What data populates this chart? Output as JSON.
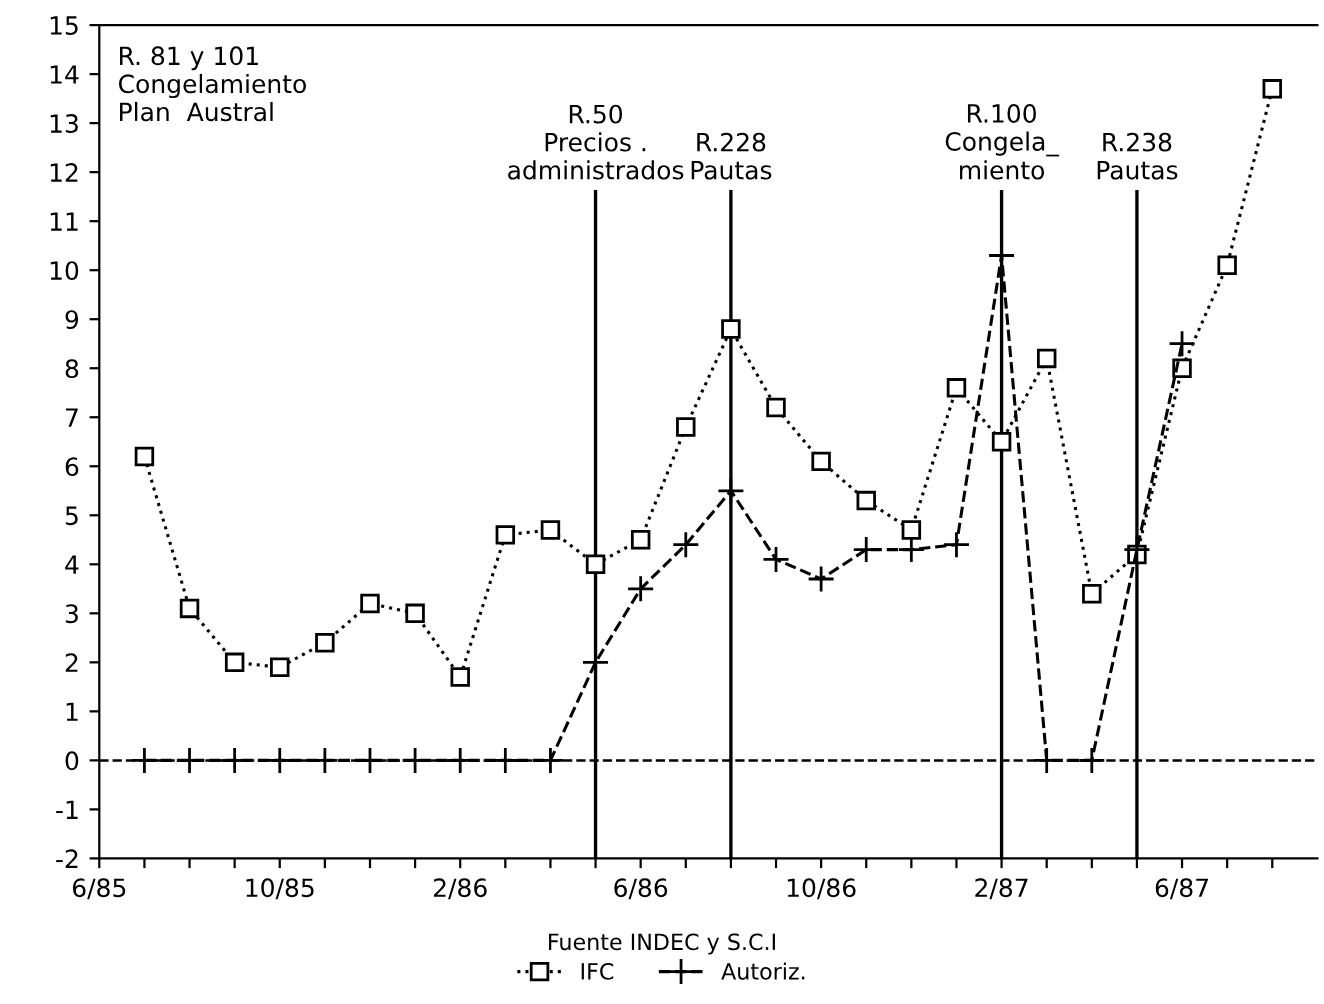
{
  "chart_data": {
    "type": "line",
    "x": [
      "1985-07",
      "1985-08",
      "1985-09",
      "1985-10",
      "1985-11",
      "1985-12",
      "1986-01",
      "1986-02",
      "1986-03",
      "1986-04",
      "1986-05",
      "1986-06",
      "1986-07",
      "1986-08",
      "1986-09",
      "1986-10",
      "1986-11",
      "1986-12",
      "1987-01",
      "1987-02",
      "1987-03",
      "1987-04",
      "1987-05",
      "1987-06",
      "1987-07",
      "1987-08"
    ],
    "series": [
      {
        "name": "IFC",
        "color": "#000000",
        "marker": "square",
        "line_style": "dotted",
        "values": [
          6.2,
          3.1,
          2.0,
          1.9,
          2.4,
          3.2,
          3.0,
          1.7,
          4.6,
          4.7,
          4.0,
          4.5,
          6.8,
          8.8,
          7.2,
          6.1,
          5.3,
          4.7,
          7.6,
          6.5,
          8.2,
          3.4,
          4.2,
          8.0,
          10.1,
          13.7
        ]
      },
      {
        "name": "Autoriz.",
        "color": "#000000",
        "marker": "cross",
        "line_style": "dashed",
        "values": [
          0,
          0,
          0,
          0,
          0,
          0,
          0,
          0,
          0,
          0,
          2.0,
          3.5,
          4.4,
          5.5,
          4.1,
          3.7,
          4.3,
          4.3,
          4.4,
          10.3,
          0,
          0,
          4.3,
          8.5,
          null,
          null
        ]
      }
    ],
    "xlim": [
      "1985-06",
      "1987-09"
    ],
    "xticks": [
      {
        "value": "1985-06",
        "label": "6/85"
      },
      {
        "value": "1985-07",
        "label": null
      },
      {
        "value": "1985-08",
        "label": null
      },
      {
        "value": "1985-09",
        "label": null
      },
      {
        "value": "1985-10",
        "label": "10/85"
      },
      {
        "value": "1985-11",
        "label": null
      },
      {
        "value": "1985-12",
        "label": null
      },
      {
        "value": "1986-01",
        "label": null
      },
      {
        "value": "1986-02",
        "label": "2/86"
      },
      {
        "value": "1986-03",
        "label": null
      },
      {
        "value": "1986-04",
        "label": null
      },
      {
        "value": "1986-05",
        "label": null
      },
      {
        "value": "1986-06",
        "label": "6/86"
      },
      {
        "value": "1986-07",
        "label": null
      },
      {
        "value": "1986-08",
        "label": null
      },
      {
        "value": "1986-09",
        "label": null
      },
      {
        "value": "1986-10",
        "label": "10/86"
      },
      {
        "value": "1986-11",
        "label": null
      },
      {
        "value": "1986-12",
        "label": null
      },
      {
        "value": "1987-01",
        "label": null
      },
      {
        "value": "1987-02",
        "label": "2/87"
      },
      {
        "value": "1987-03",
        "label": null
      },
      {
        "value": "1987-04",
        "label": null
      },
      {
        "value": "1987-05",
        "label": null
      },
      {
        "value": "1987-06",
        "label": "6/87"
      },
      {
        "value": "1987-07",
        "label": null
      },
      {
        "value": "1987-08",
        "label": null
      }
    ],
    "ylim": [
      -2,
      15
    ],
    "yticks": [
      -2,
      -1,
      0,
      1,
      2,
      3,
      4,
      5,
      6,
      7,
      8,
      9,
      10,
      11,
      12,
      13,
      14,
      15
    ],
    "ref_lines": [
      {
        "axis": "y",
        "value": 0,
        "line_style": "dashed",
        "color": "#000000"
      },
      {
        "axis": "x",
        "value": "1986-05",
        "label": "R.50\nPrecios .\nadministrados",
        "color": "#000000"
      },
      {
        "axis": "x",
        "value": "1986-08",
        "label": "R.228\nPautas",
        "color": "#000000"
      },
      {
        "axis": "x",
        "value": "1987-02",
        "label": "R.100\nCongela_\nmiento",
        "color": "#000000"
      },
      {
        "axis": "x",
        "value": "1987-05",
        "label": "R.238\nPautas",
        "color": "#000000"
      }
    ],
    "annotations": [
      "R. 81 y 101\nCongelamiento\nPlan  Austral",
      "Fuente INDEC y S.C.I"
    ],
    "grid": false,
    "legend": "bottom"
  }
}
